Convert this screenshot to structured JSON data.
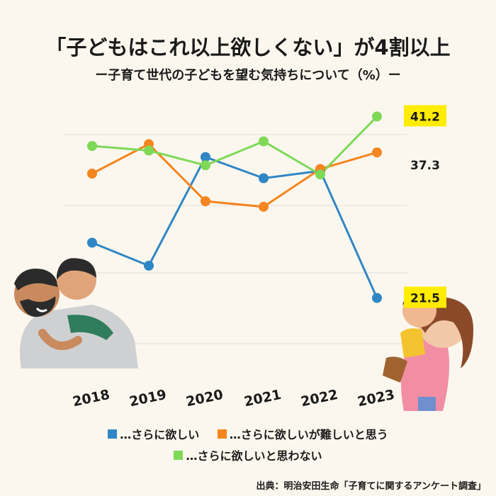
{
  "header": {
    "title": "「子どもはこれ以上欲しくない」が4割以上",
    "subtitle": "ー子育て世代の子どもを望む気持ちについて（%）ー"
  },
  "chart_data": {
    "type": "line",
    "x": [
      "2018",
      "2019",
      "2020",
      "2021",
      "2022",
      "2023"
    ],
    "series": [
      {
        "name": "…さらに欲しい",
        "color": "#2f86c4",
        "values": [
          27.5,
          25.0,
          36.8,
          34.5,
          35.3,
          21.5
        ]
      },
      {
        "name": "…さらに欲しいが難しいと思う",
        "color": "#f5851f",
        "values": [
          35.0,
          38.2,
          32.0,
          31.4,
          35.5,
          37.3
        ]
      },
      {
        "name": "…さらに欲しいと思わない",
        "color": "#7ed957",
        "values": [
          38.0,
          37.5,
          35.9,
          38.5,
          34.9,
          41.2
        ]
      }
    ],
    "labels": [
      {
        "series": 2,
        "index": 5,
        "text": "41.2",
        "highlight": true
      },
      {
        "series": 1,
        "index": 5,
        "text": "37.3",
        "highlight": false
      },
      {
        "series": 0,
        "index": 5,
        "text": "21.5",
        "highlight": true
      }
    ],
    "title": "「子どもはこれ以上欲しくない」が4割以上",
    "grid": true,
    "legend_position": "bottom"
  },
  "legend": {
    "items": [
      {
        "label": "…さらに欲しい",
        "color": "#2f86c4"
      },
      {
        "label": "…さらに欲しいが難しいと思う",
        "color": "#f5851f"
      },
      {
        "label": "…さらに欲しいと思わない",
        "color": "#7ed957"
      }
    ]
  },
  "footer": {
    "source": "出典：明治安田生命「子育てに関するアンケート調査」"
  },
  "colors": {
    "background": "#fbf7ee",
    "highlight": "#ffec00",
    "grid": "#dddddd"
  }
}
